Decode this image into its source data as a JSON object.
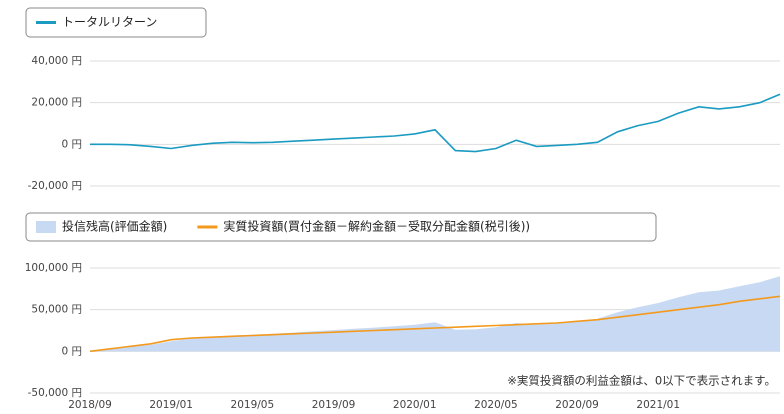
{
  "chart_data": [
    {
      "type": "line",
      "x": [
        "2018/09",
        "2018/10",
        "2018/11",
        "2018/12",
        "2019/01",
        "2019/02",
        "2019/03",
        "2019/04",
        "2019/05",
        "2019/06",
        "2019/07",
        "2019/08",
        "2019/09",
        "2019/10",
        "2019/11",
        "2019/12",
        "2020/01",
        "2020/02",
        "2020/03",
        "2020/04",
        "2020/05",
        "2020/06",
        "2020/07",
        "2020/08",
        "2020/09",
        "2020/10",
        "2020/11",
        "2020/12",
        "2021/01",
        "2021/02",
        "2021/03",
        "2021/04",
        "2021/05",
        "2021/06",
        "2021/07"
      ],
      "series": [
        {
          "name": "トータルリターン",
          "color": "#1b9ac2",
          "values": [
            0,
            0,
            -200,
            -1000,
            -2000,
            -500,
            500,
            1000,
            800,
            1000,
            1500,
            2000,
            2500,
            3000,
            3500,
            4000,
            5000,
            7000,
            -3000,
            -3500,
            -2000,
            2000,
            -1000,
            -500,
            0,
            1000,
            6000,
            9000,
            11000,
            15000,
            18000,
            17000,
            18000,
            20000,
            24000
          ]
        }
      ],
      "xlim": [
        "2018/09",
        "2021/07"
      ],
      "ylim": [
        -20000,
        40000
      ],
      "yticks": [
        {
          "value": 40000,
          "label": "40,000 円"
        },
        {
          "value": 20000,
          "label": "20,000 円"
        },
        {
          "value": 0,
          "label": "0 円"
        },
        {
          "value": -20000,
          "label": "-20,000 円"
        }
      ],
      "grid": true
    },
    {
      "type": "area",
      "x": [
        "2018/09",
        "2018/10",
        "2018/11",
        "2018/12",
        "2019/01",
        "2019/02",
        "2019/03",
        "2019/04",
        "2019/05",
        "2019/06",
        "2019/07",
        "2019/08",
        "2019/09",
        "2019/10",
        "2019/11",
        "2019/12",
        "2020/01",
        "2020/02",
        "2020/03",
        "2020/04",
        "2020/05",
        "2020/06",
        "2020/07",
        "2020/08",
        "2020/09",
        "2020/10",
        "2020/11",
        "2020/12",
        "2021/01",
        "2021/02",
        "2021/03",
        "2021/04",
        "2021/05",
        "2021/06",
        "2021/07"
      ],
      "series": [
        {
          "name": "投信残高(評価金額)",
          "color": "#c8daf3",
          "kind": "area",
          "values": [
            0,
            3000,
            5800,
            8000,
            12000,
            15500,
            17500,
            19000,
            19800,
            21000,
            22500,
            24000,
            25500,
            27000,
            28500,
            30000,
            32000,
            35000,
            26000,
            26500,
            29000,
            34000,
            32000,
            33500,
            36000,
            39000,
            47000,
            53000,
            58000,
            65000,
            71000,
            73000,
            78000,
            83000,
            90000
          ]
        },
        {
          "name": "実質投資額(買付金額－解約金額－受取分配金額(税引後))",
          "color": "#f39a1e",
          "kind": "line",
          "values": [
            0,
            3000,
            6000,
            9000,
            14000,
            16000,
            17000,
            18000,
            19000,
            20000,
            21000,
            22000,
            23000,
            24000,
            25000,
            26000,
            27000,
            28000,
            29000,
            30000,
            31000,
            32000,
            33000,
            34000,
            36000,
            38000,
            41000,
            44000,
            47000,
            50000,
            53000,
            56000,
            60000,
            63000,
            66000
          ]
        }
      ],
      "xlim": [
        "2018/09",
        "2021/07"
      ],
      "xticks": [
        "2018/09",
        "2019/01",
        "2019/05",
        "2019/09",
        "2020/01",
        "2020/05",
        "2020/09",
        "2021/01"
      ],
      "ylim": [
        -50000,
        100000
      ],
      "yticks": [
        {
          "value": 100000,
          "label": "100,000 円"
        },
        {
          "value": 50000,
          "label": "50,000 円"
        },
        {
          "value": 0,
          "label": "0 円"
        },
        {
          "value": -50000,
          "label": "-50,000 円"
        }
      ],
      "grid": true,
      "note": "※実質投資額の利益金額は、0以下で表示されます。"
    }
  ]
}
